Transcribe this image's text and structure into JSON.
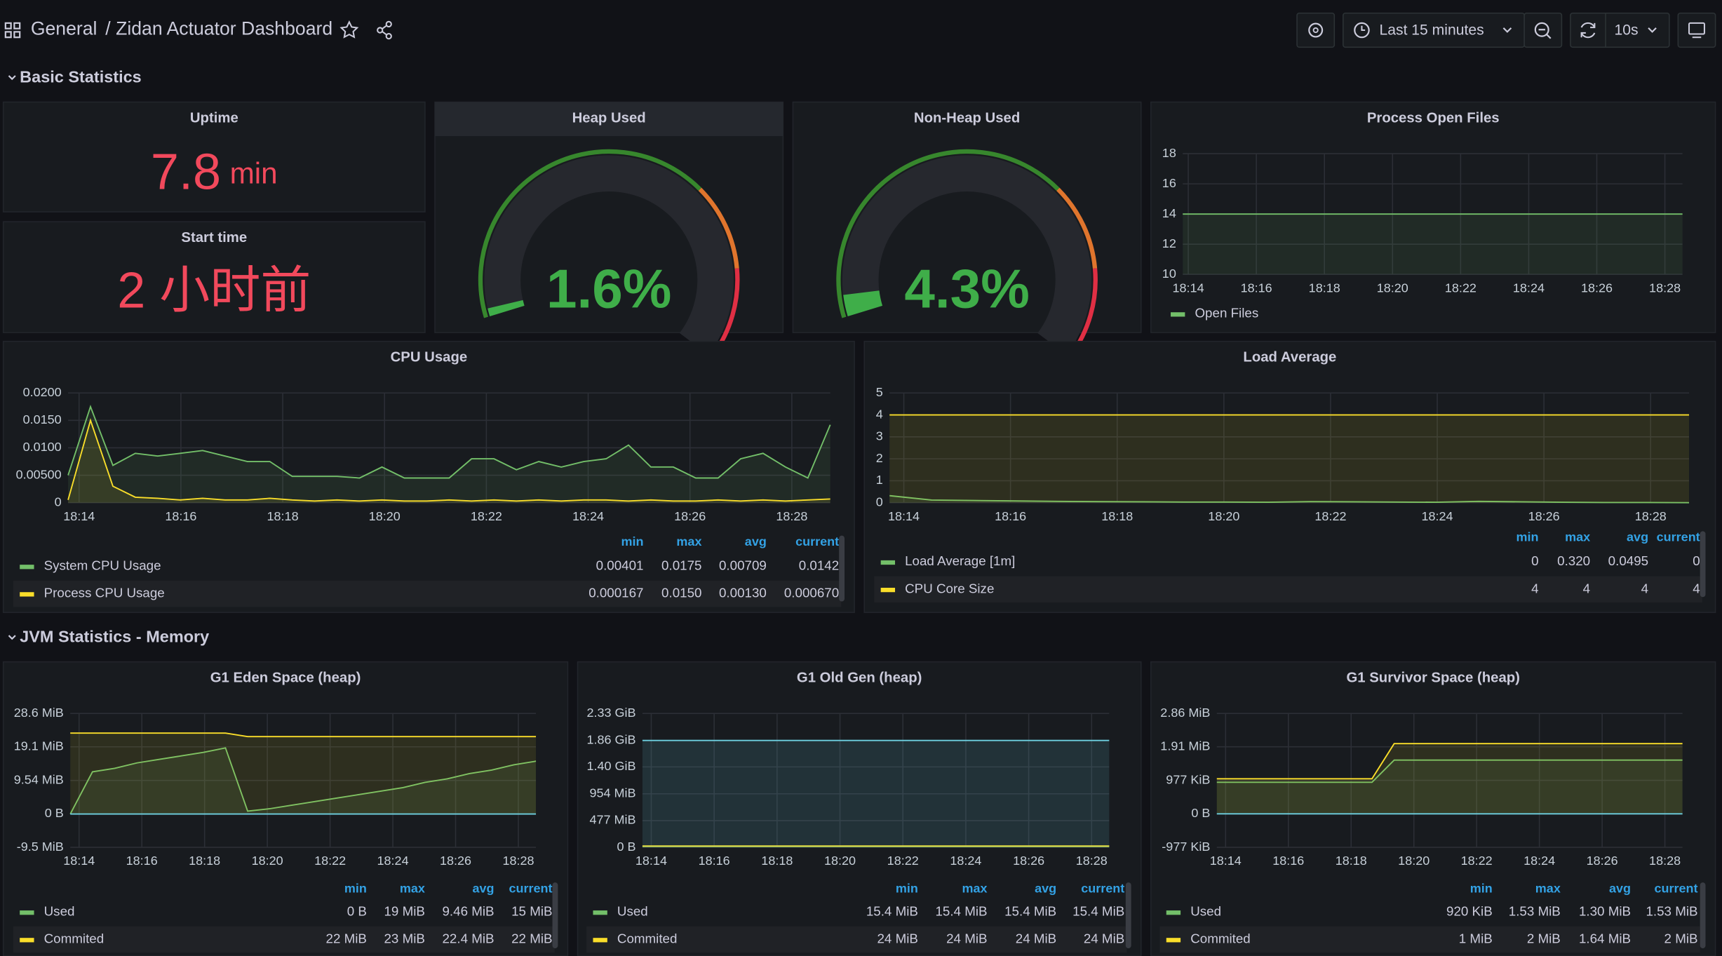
{
  "header": {
    "breadcrumb": "General",
    "title": "/ Zidan Actuator Dashboard",
    "time_range": "Last 15 minutes",
    "refresh": "10s"
  },
  "sections": [
    "Basic Statistics",
    "JVM Statistics - Memory"
  ],
  "stats": [
    {
      "title": "Uptime",
      "value": "7.8",
      "unit": "min",
      "color": "#f2495c"
    },
    {
      "title": "Start time",
      "value": "2 小时前",
      "color": "#f2495c"
    }
  ],
  "gauges": [
    {
      "title": "Heap Used",
      "value": 1.6,
      "value_label": "1.6%",
      "ylim": [
        0,
        100
      ],
      "color": "#3fae49"
    },
    {
      "title": "Non-Heap Used",
      "value": 4.3,
      "value_label": "4.3%",
      "ylim": [
        0,
        100
      ],
      "color": "#3fae49"
    }
  ],
  "panels": [
    {
      "title": "Process Open Files",
      "type": "line",
      "ylim": [
        10,
        18
      ],
      "yticks": [
        10,
        12,
        14,
        16,
        18
      ],
      "xticks": [
        "18:14",
        "18:16",
        "18:18",
        "18:20",
        "18:22",
        "18:24",
        "18:26",
        "18:28"
      ],
      "series": [
        {
          "name": "Open Files",
          "color": "#73bf69",
          "values": [
            14,
            14
          ]
        }
      ]
    },
    {
      "title": "CPU Usage",
      "type": "line",
      "ylim": [
        0,
        0.02
      ],
      "yticks": [
        0,
        {
          "value": 0.005,
          "label": "0.00500"
        },
        {
          "value": 0.01,
          "label": "0.0100"
        },
        {
          "value": 0.015,
          "label": "0.0150"
        },
        {
          "value": 0.02,
          "label": "0.0200"
        }
      ],
      "xticks": [
        "18:14",
        "18:16",
        "18:18",
        "18:20",
        "18:22",
        "18:24",
        "18:26",
        "18:28"
      ],
      "series": [
        {
          "name": "System CPU Usage",
          "color": "#73bf69",
          "values": [
            0.005,
            0.0175,
            0.0068,
            0.009,
            0.0085,
            0.009,
            0.0095,
            0.0085,
            0.0075,
            0.0075,
            0.0048,
            0.0048,
            0.0048,
            0.0045,
            0.0065,
            0.0045,
            0.0045,
            0.0045,
            0.008,
            0.008,
            0.006,
            0.0075,
            0.0065,
            0.0075,
            0.008,
            0.0105,
            0.0065,
            0.0065,
            0.0045,
            0.0045,
            0.008,
            0.009,
            0.0065,
            0.0045,
            0.0142
          ]
        },
        {
          "name": "Process CPU Usage",
          "color": "#fade2a",
          "values": [
            0.0005,
            0.015,
            0.003,
            0.001,
            0.0008,
            0.0005,
            0.0008,
            0.0005,
            0.0005,
            0.0008,
            0.0005,
            0.0003,
            0.0005,
            0.0003,
            0.0005,
            0.0003,
            0.0003,
            0.0005,
            0.0003,
            0.0005,
            0.0003,
            0.0005,
            0.0003,
            0.0005,
            0.0005,
            0.0003,
            0.0005,
            0.0003,
            0.0003,
            0.0005,
            0.0003,
            0.0005,
            0.0003,
            0.0005,
            0.00067
          ]
        }
      ],
      "legend": {
        "columns": [
          "min",
          "max",
          "avg",
          "current"
        ],
        "rows": [
          [
            "0.00401",
            "0.0175",
            "0.00709",
            "0.0142"
          ],
          [
            "0.000167",
            "0.0150",
            "0.00130",
            "0.000670"
          ]
        ]
      }
    },
    {
      "title": "Load Average",
      "type": "line",
      "ylim": [
        0,
        5
      ],
      "yticks": [
        0,
        1,
        2,
        3,
        4,
        5
      ],
      "xticks": [
        "18:14",
        "18:16",
        "18:18",
        "18:20",
        "18:22",
        "18:24",
        "18:26",
        "18:28"
      ],
      "series": [
        {
          "name": "Load Average [1m]",
          "color": "#73bf69",
          "values": [
            0.32,
            0.12,
            0.1,
            0.08,
            0.06,
            0.05,
            0.04,
            0.03,
            0.03,
            0.02,
            0.05,
            0.04,
            0.03,
            0.02,
            0.06,
            0.04,
            0.02,
            0.01,
            0.01,
            0
          ]
        },
        {
          "name": "CPU Core Size",
          "color": "#fade2a",
          "values": [
            4,
            4
          ]
        }
      ],
      "legend": {
        "columns": [
          "min",
          "max",
          "avg",
          "current"
        ],
        "rows": [
          [
            "0",
            "0.320",
            "0.0495",
            "0"
          ],
          [
            "4",
            "4",
            "4",
            "4"
          ]
        ]
      }
    },
    {
      "title": "G1 Eden Space (heap)",
      "type": "line",
      "ylim": [
        -9.5,
        28.6
      ],
      "yticks": [
        {
          "value": -9.5,
          "label": "-9.5 MiB"
        },
        {
          "value": 0,
          "label": "0 B"
        },
        {
          "value": 9.54,
          "label": "9.54 MiB"
        },
        {
          "value": 19.1,
          "label": "19.1 MiB"
        },
        {
          "value": 28.6,
          "label": "28.6 MiB"
        }
      ],
      "xticks": [
        "18:14",
        "18:16",
        "18:18",
        "18:20",
        "18:22",
        "18:24",
        "18:26",
        "18:28"
      ],
      "series": [
        {
          "name": "Used",
          "color": "#73bf69",
          "values": [
            0,
            12,
            13,
            14.5,
            15.5,
            16.5,
            17.5,
            18.8,
            0.8,
            1.5,
            2.5,
            3.5,
            4.5,
            5.5,
            6.5,
            7.5,
            9,
            10,
            11.5,
            12.5,
            14,
            15
          ]
        },
        {
          "name": "Commited",
          "color": "#fade2a",
          "values": [
            23,
            23,
            23,
            23,
            23,
            23,
            23,
            23,
            22,
            22,
            22,
            22,
            22,
            22,
            22,
            22,
            22,
            22,
            22,
            22,
            22,
            22
          ]
        },
        {
          "color": "#6ed0e0",
          "values": [
            0,
            0
          ]
        }
      ],
      "legend": {
        "columns": [
          "min",
          "max",
          "avg",
          "current"
        ],
        "rows": [
          [
            "0 B",
            "19 MiB",
            "9.46 MiB",
            "15 MiB"
          ],
          [
            "22 MiB",
            "23 MiB",
            "22.4 MiB",
            "22 MiB"
          ]
        ]
      }
    },
    {
      "title": "G1 Old Gen (heap)",
      "type": "line",
      "ylim": [
        0,
        2385.9
      ],
      "yticks": [
        {
          "value": 0,
          "label": "0 B"
        },
        {
          "value": 477,
          "label": "477 MiB"
        },
        {
          "value": 954,
          "label": "954 MiB"
        },
        {
          "value": 1433.6,
          "label": "1.40 GiB"
        },
        {
          "value": 1904.6,
          "label": "1.86 GiB"
        },
        {
          "value": 2385.9,
          "label": "2.33 GiB"
        }
      ],
      "xticks": [
        "18:14",
        "18:16",
        "18:18",
        "18:20",
        "18:22",
        "18:24",
        "18:26",
        "18:28"
      ],
      "series": [
        {
          "name": "Used",
          "color": "#73bf69",
          "values": [
            15.4,
            15.4
          ]
        },
        {
          "name": "Commited",
          "color": "#fade2a",
          "values": [
            24,
            24
          ]
        },
        {
          "color": "#6ed0e0",
          "values": [
            1904,
            1904
          ]
        }
      ],
      "legend": {
        "columns": [
          "min",
          "max",
          "avg",
          "current"
        ],
        "rows": [
          [
            "15.4 MiB",
            "15.4 MiB",
            "15.4 MiB",
            "15.4 MiB"
          ],
          [
            "24 MiB",
            "24 MiB",
            "24 MiB",
            "24 MiB"
          ]
        ]
      }
    },
    {
      "title": "G1 Survivor Space (heap)",
      "type": "line",
      "ylim": [
        -977,
        2928.6
      ],
      "yticks": [
        {
          "value": -977,
          "label": "-977 KiB"
        },
        {
          "value": 0,
          "label": "0 B"
        },
        {
          "value": 977,
          "label": "977 KiB"
        },
        {
          "value": 1955.8,
          "label": "1.91 MiB"
        },
        {
          "value": 2928.6,
          "label": "2.86 MiB"
        }
      ],
      "xticks": [
        "18:14",
        "18:16",
        "18:18",
        "18:20",
        "18:22",
        "18:24",
        "18:26",
        "18:28"
      ],
      "series": [
        {
          "name": "Used",
          "color": "#73bf69",
          "values": [
            920,
            920,
            920,
            920,
            920,
            920,
            920,
            920,
            1567,
            1567,
            1567,
            1567,
            1567,
            1567,
            1567,
            1567,
            1567,
            1567,
            1567,
            1567,
            1567,
            1567
          ]
        },
        {
          "name": "Commited",
          "color": "#fade2a",
          "values": [
            1024,
            1024,
            1024,
            1024,
            1024,
            1024,
            1024,
            1024,
            2048,
            2048,
            2048,
            2048,
            2048,
            2048,
            2048,
            2048,
            2048,
            2048,
            2048,
            2048,
            2048,
            2048
          ]
        },
        {
          "color": "#6ed0e0",
          "values": [
            0,
            0
          ]
        }
      ],
      "legend": {
        "columns": [
          "min",
          "max",
          "avg",
          "current"
        ],
        "rows": [
          [
            "920 KiB",
            "1.53 MiB",
            "1.30 MiB",
            "1.53 MiB"
          ],
          [
            "1 MiB",
            "2 MiB",
            "1.64 MiB",
            "2 MiB"
          ]
        ]
      }
    }
  ]
}
